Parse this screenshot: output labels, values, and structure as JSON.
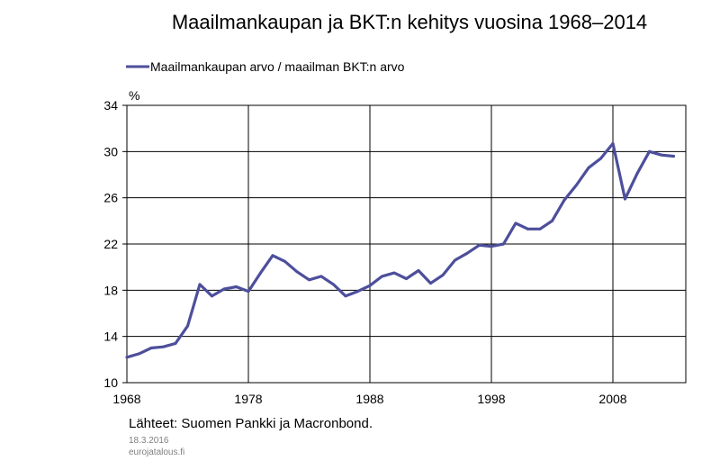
{
  "chart_data": {
    "type": "line",
    "title": "Maailmankaupan ja BKT:n kehitys vuosina 1968–2014",
    "ylabel": "%",
    "ylim": [
      10,
      34
    ],
    "yticks": [
      10,
      14,
      18,
      22,
      26,
      30,
      34
    ],
    "xlim": [
      1968,
      2014
    ],
    "xtick_labels": [
      "1968",
      "1978",
      "1988",
      "1998",
      "2008"
    ],
    "xticks": [
      1968,
      1978,
      1988,
      1998,
      2008
    ],
    "grid": true,
    "legend_position": "top-left",
    "series": [
      {
        "name": "Maailmankaupan arvo / maailman BKT:n arvo",
        "color": "#4d4f9b",
        "x": [
          1968,
          1969,
          1970,
          1971,
          1972,
          1973,
          1974,
          1975,
          1976,
          1977,
          1978,
          1979,
          1980,
          1981,
          1982,
          1983,
          1984,
          1985,
          1986,
          1987,
          1988,
          1989,
          1990,
          1991,
          1992,
          1993,
          1994,
          1995,
          1996,
          1997,
          1998,
          1999,
          2000,
          2001,
          2002,
          2003,
          2004,
          2005,
          2006,
          2007,
          2008,
          2009,
          2010,
          2011,
          2012,
          2013
        ],
        "values": [
          12.2,
          12.5,
          13.0,
          13.1,
          13.4,
          14.9,
          18.5,
          17.5,
          18.1,
          18.3,
          17.9,
          19.5,
          21.0,
          20.5,
          19.6,
          18.9,
          19.2,
          18.5,
          17.5,
          17.9,
          18.4,
          19.2,
          19.5,
          19.0,
          19.7,
          18.6,
          19.3,
          20.6,
          21.2,
          21.9,
          21.8,
          22.0,
          23.8,
          23.3,
          23.3,
          24.0,
          25.8,
          27.1,
          28.6,
          29.4,
          30.7,
          25.9,
          28.1,
          30.0,
          29.7,
          29.6
        ]
      }
    ]
  },
  "legend": {
    "label": "Maailmankaupan arvo / maailman BKT:n arvo"
  },
  "footer": {
    "source": "Lähteet: Suomen Pankki ja Macronbond.",
    "date": "18.3.2016",
    "site": "eurojatalous.fi"
  }
}
